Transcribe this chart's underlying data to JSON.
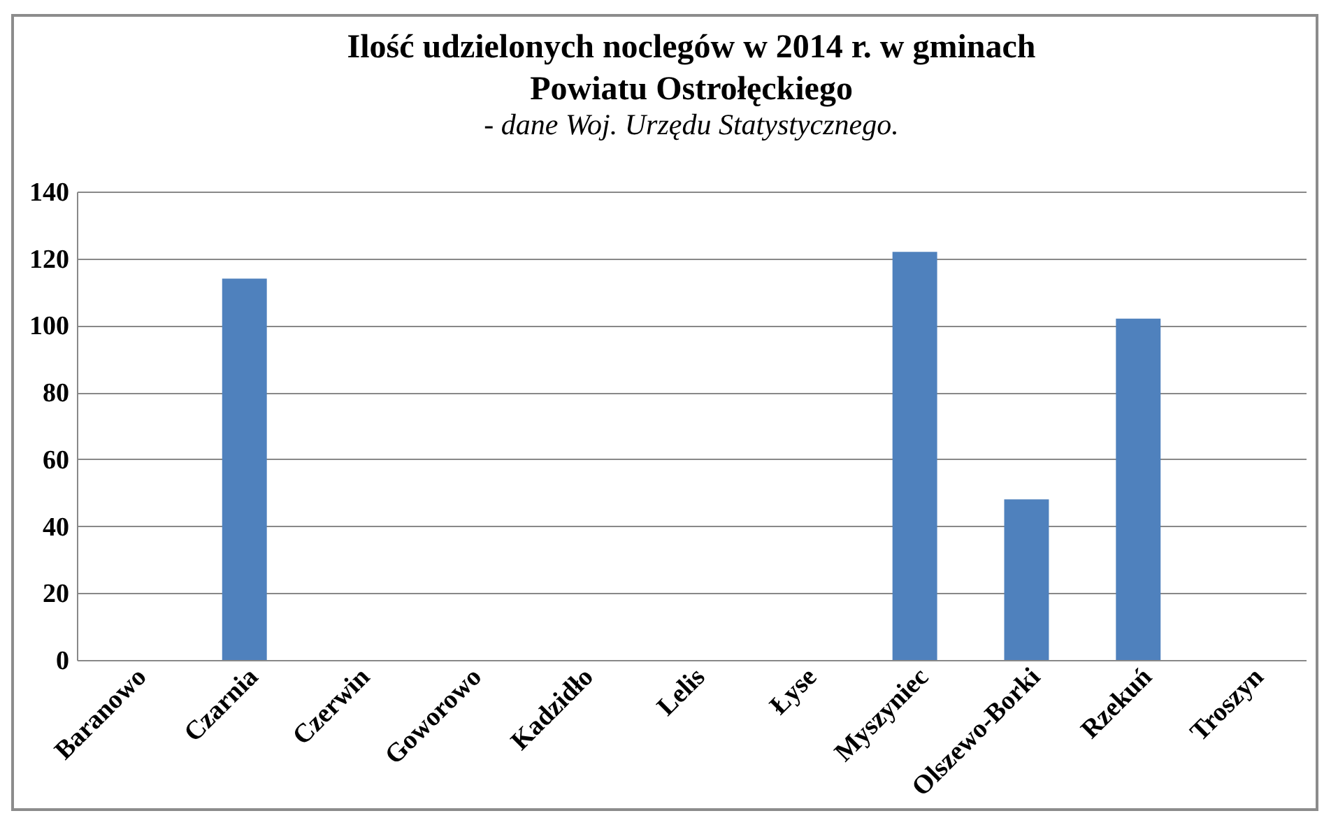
{
  "chart_data": {
    "type": "bar",
    "title": "Ilość udzielonych noclegów w 2014 r. w gminach\nPowiatu Ostrołęckiego",
    "subtitle": "- dane Woj. Urzędu Statystycznego.",
    "categories": [
      "Baranowo",
      "Czarnia",
      "Czerwin",
      "Goworowo",
      "Kadzidło",
      "Lelis",
      "Łyse",
      "Myszyniec",
      "Olszewo-Borki",
      "Rzekuń",
      "Troszyn"
    ],
    "values": [
      0,
      114,
      0,
      0,
      0,
      0,
      0,
      122,
      48,
      102,
      0
    ],
    "color": "#4f81bd",
    "ylim": [
      0,
      140
    ],
    "yticks": [
      0,
      20,
      40,
      60,
      80,
      100,
      120,
      140
    ],
    "grid": "y"
  }
}
